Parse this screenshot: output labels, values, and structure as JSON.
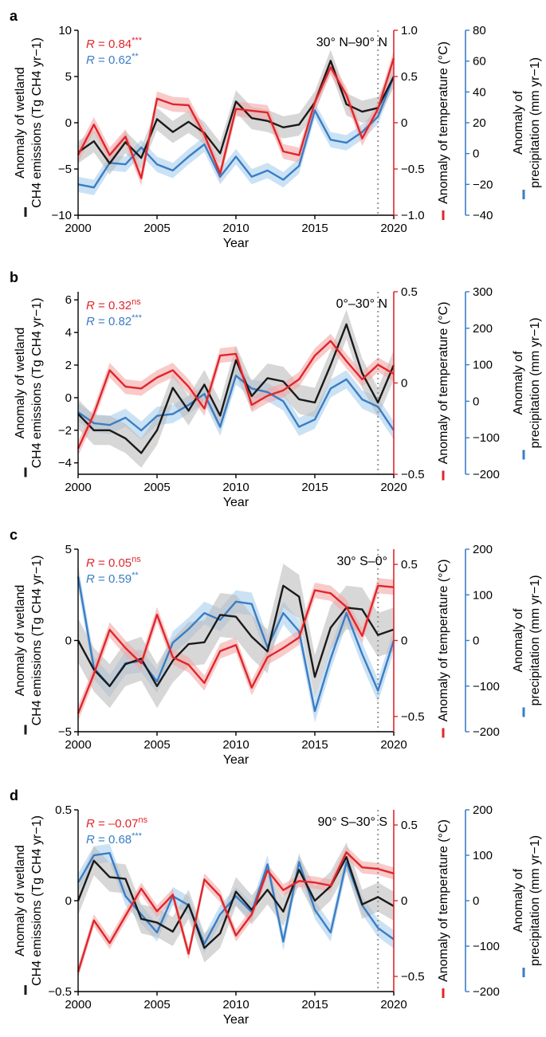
{
  "colors": {
    "emissions": "#1a1a1a",
    "temperature": "#e0262b",
    "precipitation": "#3a7dc4",
    "band_emissions": "#bdbdbd",
    "band_temperature": "#f4a7a7",
    "band_precipitation": "#a9cfee",
    "vline": "#9e9e9e"
  },
  "chart_data": [
    {
      "panel": "a",
      "type": "line",
      "region": "30° N–90° N",
      "xlabel": "Year",
      "xlim": [
        2000,
        2020
      ],
      "xticks": [
        "2000",
        "2005",
        "2010",
        "2015",
        "2020"
      ],
      "left_axis": {
        "label_line1": "Anomaly of wetland",
        "label_line2": "CH4 emissions (Tg CH4 yr−1)",
        "ylim": [
          -10,
          10
        ],
        "ticks": [
          "−10",
          "−5",
          "0",
          "5",
          "10"
        ],
        "tick_values": [
          -10,
          -5,
          0,
          5,
          10
        ]
      },
      "temp_axis": {
        "label": "Anomaly of temperature (°C)",
        "ylim": [
          -1.0,
          1.0
        ],
        "ticks": [
          "−1.0",
          "−0.5",
          "0",
          "0.5",
          "1.0"
        ],
        "tick_values": [
          -1.0,
          -0.5,
          0,
          0.5,
          1.0
        ]
      },
      "precip_axis": {
        "label_line1": "Anomaly of",
        "label_line2": "precipitation (mm yr−1)",
        "ylim": [
          -40,
          80
        ],
        "ticks": [
          "−40",
          "−20",
          "0",
          "20",
          "40",
          "60",
          "80"
        ],
        "tick_values": [
          -40,
          -20,
          0,
          20,
          40,
          60,
          80
        ]
      },
      "r_temp": {
        "prefix": "R",
        "text": " = 0.84",
        "sig": "***"
      },
      "r_precip": {
        "prefix": "R",
        "text": " = 0.62",
        "sig": "**"
      },
      "vline_x": 2019,
      "x": [
        2000,
        2001,
        2002,
        2003,
        2004,
        2005,
        2006,
        2007,
        2008,
        2009,
        2010,
        2011,
        2012,
        2013,
        2014,
        2015,
        2016,
        2017,
        2018,
        2019,
        2020
      ],
      "series": [
        {
          "key": "emissions",
          "axis": "left",
          "values": [
            -3.2,
            -2.0,
            -4.4,
            -2.1,
            -3.8,
            0.4,
            -1.0,
            0.1,
            -1.1,
            -3.3,
            2.3,
            0.5,
            0.2,
            -0.5,
            -0.2,
            2.2,
            6.7,
            2.0,
            1.2,
            1.6,
            5.0
          ],
          "band": 1.2
        },
        {
          "key": "temperature",
          "axis": "temp",
          "values": [
            -0.35,
            -0.02,
            -0.35,
            -0.15,
            -0.6,
            0.26,
            0.2,
            0.19,
            -0.13,
            -0.55,
            0.15,
            0.13,
            0.11,
            -0.31,
            -0.35,
            0.22,
            0.6,
            0.3,
            -0.17,
            0.15,
            0.7
          ],
          "band": 0.08
        },
        {
          "key": "precipitation",
          "axis": "precip",
          "values": [
            -20,
            -22,
            -6,
            -7,
            4,
            -7,
            -11,
            -2,
            6,
            -15,
            -2,
            -15,
            -11,
            -17,
            -8,
            28,
            9,
            7,
            14,
            24,
            50
          ],
          "band": 5
        }
      ]
    },
    {
      "panel": "b",
      "type": "line",
      "region": "0°–30° N",
      "xlabel": "Year",
      "xlim": [
        2000,
        2020
      ],
      "xticks": [
        "2000",
        "2005",
        "2010",
        "2015",
        "2020"
      ],
      "left_axis": {
        "label_line1": "Anomaly of wetland",
        "label_line2": "CH4 emissions (Tg CH4 yr−1)",
        "ylim": [
          -4.7,
          6.5
        ],
        "ticks": [
          "−4",
          "−2",
          "0",
          "2",
          "4",
          "6"
        ],
        "tick_values": [
          -4,
          -2,
          0,
          2,
          4,
          6
        ]
      },
      "temp_axis": {
        "label": "Anomaly of temperature (°C)",
        "ylim": [
          -0.5,
          0.5
        ],
        "ticks": [
          "−0.5",
          "0",
          "0.5"
        ],
        "tick_values": [
          -0.5,
          0,
          0.5
        ]
      },
      "precip_axis": {
        "label_line1": "Anomaly of",
        "label_line2": "precipitation (mm yr−1)",
        "ylim": [
          -200,
          300
        ],
        "ticks": [
          "−200",
          "−100",
          "0",
          "100",
          "200",
          "300"
        ],
        "tick_values": [
          -200,
          -100,
          0,
          100,
          200,
          300
        ]
      },
      "r_temp": {
        "prefix": "R",
        "text": " = 0.32",
        "sig": "ns"
      },
      "r_precip": {
        "prefix": "R",
        "text": " = 0.82",
        "sig": "***"
      },
      "vline_x": 2019,
      "x": [
        2000,
        2001,
        2002,
        2003,
        2004,
        2005,
        2006,
        2007,
        2008,
        2009,
        2010,
        2011,
        2012,
        2013,
        2014,
        2015,
        2016,
        2017,
        2018,
        2019,
        2020
      ],
      "series": [
        {
          "key": "emissions",
          "axis": "left",
          "values": [
            -1.0,
            -2.0,
            -2.0,
            -2.5,
            -3.4,
            -2.0,
            0.6,
            -0.8,
            0.8,
            -1.1,
            2.3,
            0.1,
            1.2,
            1.0,
            -0.1,
            -0.3,
            2.0,
            4.5,
            1.5,
            -0.3,
            2.0
          ],
          "band": 0.9
        },
        {
          "key": "temperature",
          "axis": "temp",
          "values": [
            -0.36,
            -0.17,
            0.07,
            -0.02,
            -0.03,
            0.03,
            0.07,
            -0.02,
            -0.14,
            0.15,
            0.16,
            -0.12,
            -0.07,
            -0.04,
            0.02,
            0.15,
            0.23,
            0.12,
            0.02,
            0.1,
            0.05
          ],
          "band": 0.04
        },
        {
          "key": "precipitation",
          "axis": "precip",
          "values": [
            -30,
            -60,
            -65,
            -45,
            -80,
            -40,
            -35,
            -10,
            20,
            -70,
            70,
            35,
            25,
            0,
            -70,
            -50,
            35,
            60,
            5,
            -15,
            -80
          ],
          "band": 25
        }
      ]
    },
    {
      "panel": "c",
      "type": "line",
      "region": "30° S–0°",
      "xlabel": "Year",
      "xlim": [
        2000,
        2020
      ],
      "xticks": [
        "2000",
        "2005",
        "2010",
        "2015",
        "2020"
      ],
      "left_axis": {
        "label_line1": "Anomaly of wetland",
        "label_line2": "CH4 emissions (Tg CH4 yr−1)",
        "ylim": [
          -5,
          5
        ],
        "ticks": [
          "−5",
          "0",
          "5"
        ],
        "tick_values": [
          -5,
          0,
          5
        ]
      },
      "temp_axis": {
        "label": "Anomaly of temperature (°C)",
        "ylim": [
          -0.6,
          0.6
        ],
        "ticks": [
          "−0.5",
          "0",
          "0.5"
        ],
        "tick_values": [
          -0.5,
          0,
          0.5
        ]
      },
      "precip_axis": {
        "label_line1": "Anomaly of",
        "label_line2": "precipitation (mm yr−1)",
        "ylim": [
          -200,
          200
        ],
        "ticks": [
          "−200",
          "−100",
          "0",
          "100",
          "200"
        ],
        "tick_values": [
          -200,
          -100,
          0,
          100,
          200
        ]
      },
      "r_temp": {
        "prefix": "R",
        "text": " = 0.05",
        "sig": "ns"
      },
      "r_precip": {
        "prefix": "R",
        "text": " = 0.59",
        "sig": "**"
      },
      "vline_x": 2019,
      "x": [
        2000,
        2001,
        2002,
        2003,
        2004,
        2005,
        2006,
        2007,
        2008,
        2009,
        2010,
        2011,
        2012,
        2013,
        2014,
        2015,
        2016,
        2017,
        2018,
        2019,
        2020
      ],
      "series": [
        {
          "key": "emissions",
          "axis": "left",
          "values": [
            0.0,
            -1.6,
            -2.5,
            -1.3,
            -1.0,
            -2.5,
            -1.1,
            -0.2,
            -0.1,
            1.4,
            1.3,
            0.2,
            -0.6,
            3.0,
            2.4,
            -2.0,
            0.7,
            1.8,
            1.7,
            0.3,
            0.6
          ],
          "band": 1.2
        },
        {
          "key": "temperature",
          "axis": "temp",
          "values": [
            -0.48,
            -0.22,
            0.07,
            -0.05,
            -0.15,
            0.17,
            -0.11,
            -0.16,
            -0.28,
            -0.07,
            -0.03,
            -0.31,
            -0.11,
            -0.05,
            0.02,
            0.33,
            0.31,
            0.22,
            0.03,
            0.36,
            0.35
          ],
          "band": 0.05
        },
        {
          "key": "precipitation",
          "axis": "precip",
          "values": [
            140,
            -60,
            -100,
            -50,
            -45,
            -90,
            -5,
            25,
            60,
            45,
            85,
            80,
            -15,
            60,
            20,
            -155,
            -40,
            60,
            -30,
            -110,
            0
          ],
          "band": 25
        }
      ]
    },
    {
      "panel": "d",
      "type": "line",
      "region": "90° S–30° S",
      "xlabel": "Year",
      "xlim": [
        2000,
        2020
      ],
      "xticks": [
        "2000",
        "2005",
        "2010",
        "2015",
        "2020"
      ],
      "left_axis": {
        "label_line1": "Anomaly of wetland",
        "label_line2": "CH4 emissions (Tg CH4 yr−1)",
        "ylim": [
          -0.5,
          0.5
        ],
        "ticks": [
          "−0.5",
          "0",
          "0.5"
        ],
        "tick_values": [
          -0.5,
          0,
          0.5
        ]
      },
      "temp_axis": {
        "label": "Anomaly of temperature (°C)",
        "ylim": [
          -0.6,
          0.6
        ],
        "ticks": [
          "−0.5",
          "0",
          "0.5"
        ],
        "tick_values": [
          -0.5,
          0,
          0.5
        ]
      },
      "precip_axis": {
        "label_line1": "Anomaly of",
        "label_line2": "precipitation (mm yr−1)",
        "ylim": [
          -200,
          200
        ],
        "ticks": [
          "−200",
          "−100",
          "0",
          "100",
          "200"
        ],
        "tick_values": [
          -200,
          -100,
          0,
          100,
          200
        ]
      },
      "r_temp": {
        "prefix": "R",
        "text": " = –0.07",
        "sig": "ns"
      },
      "r_precip": {
        "prefix": "R",
        "text": " = 0.68",
        "sig": "***"
      },
      "vline_x": 2019,
      "x": [
        2000,
        2001,
        2002,
        2003,
        2004,
        2005,
        2006,
        2007,
        2008,
        2009,
        2010,
        2011,
        2012,
        2013,
        2014,
        2015,
        2016,
        2017,
        2018,
        2019,
        2020
      ],
      "series": [
        {
          "key": "emissions",
          "axis": "left",
          "values": [
            0.0,
            0.22,
            0.13,
            0.12,
            -0.1,
            -0.12,
            -0.17,
            -0.02,
            -0.26,
            -0.18,
            0.05,
            -0.05,
            0.06,
            -0.06,
            0.17,
            0.0,
            0.08,
            0.24,
            -0.02,
            0.02,
            -0.03
          ],
          "band": 0.08
        },
        {
          "key": "temperature",
          "axis": "temp",
          "values": [
            -0.47,
            -0.13,
            -0.28,
            -0.1,
            0.08,
            -0.07,
            0.04,
            -0.35,
            0.14,
            0.03,
            -0.23,
            -0.09,
            0.2,
            0.07,
            0.13,
            0.12,
            0.1,
            0.32,
            0.22,
            0.21,
            0.18
          ],
          "band": 0.04
        },
        {
          "key": "precipitation",
          "axis": "precip",
          "values": [
            40,
            100,
            105,
            10,
            -30,
            -70,
            10,
            -10,
            -95,
            -30,
            10,
            -25,
            80,
            -90,
            85,
            -20,
            -70,
            85,
            -10,
            -60,
            -85
          ],
          "band": 20
        }
      ]
    }
  ]
}
